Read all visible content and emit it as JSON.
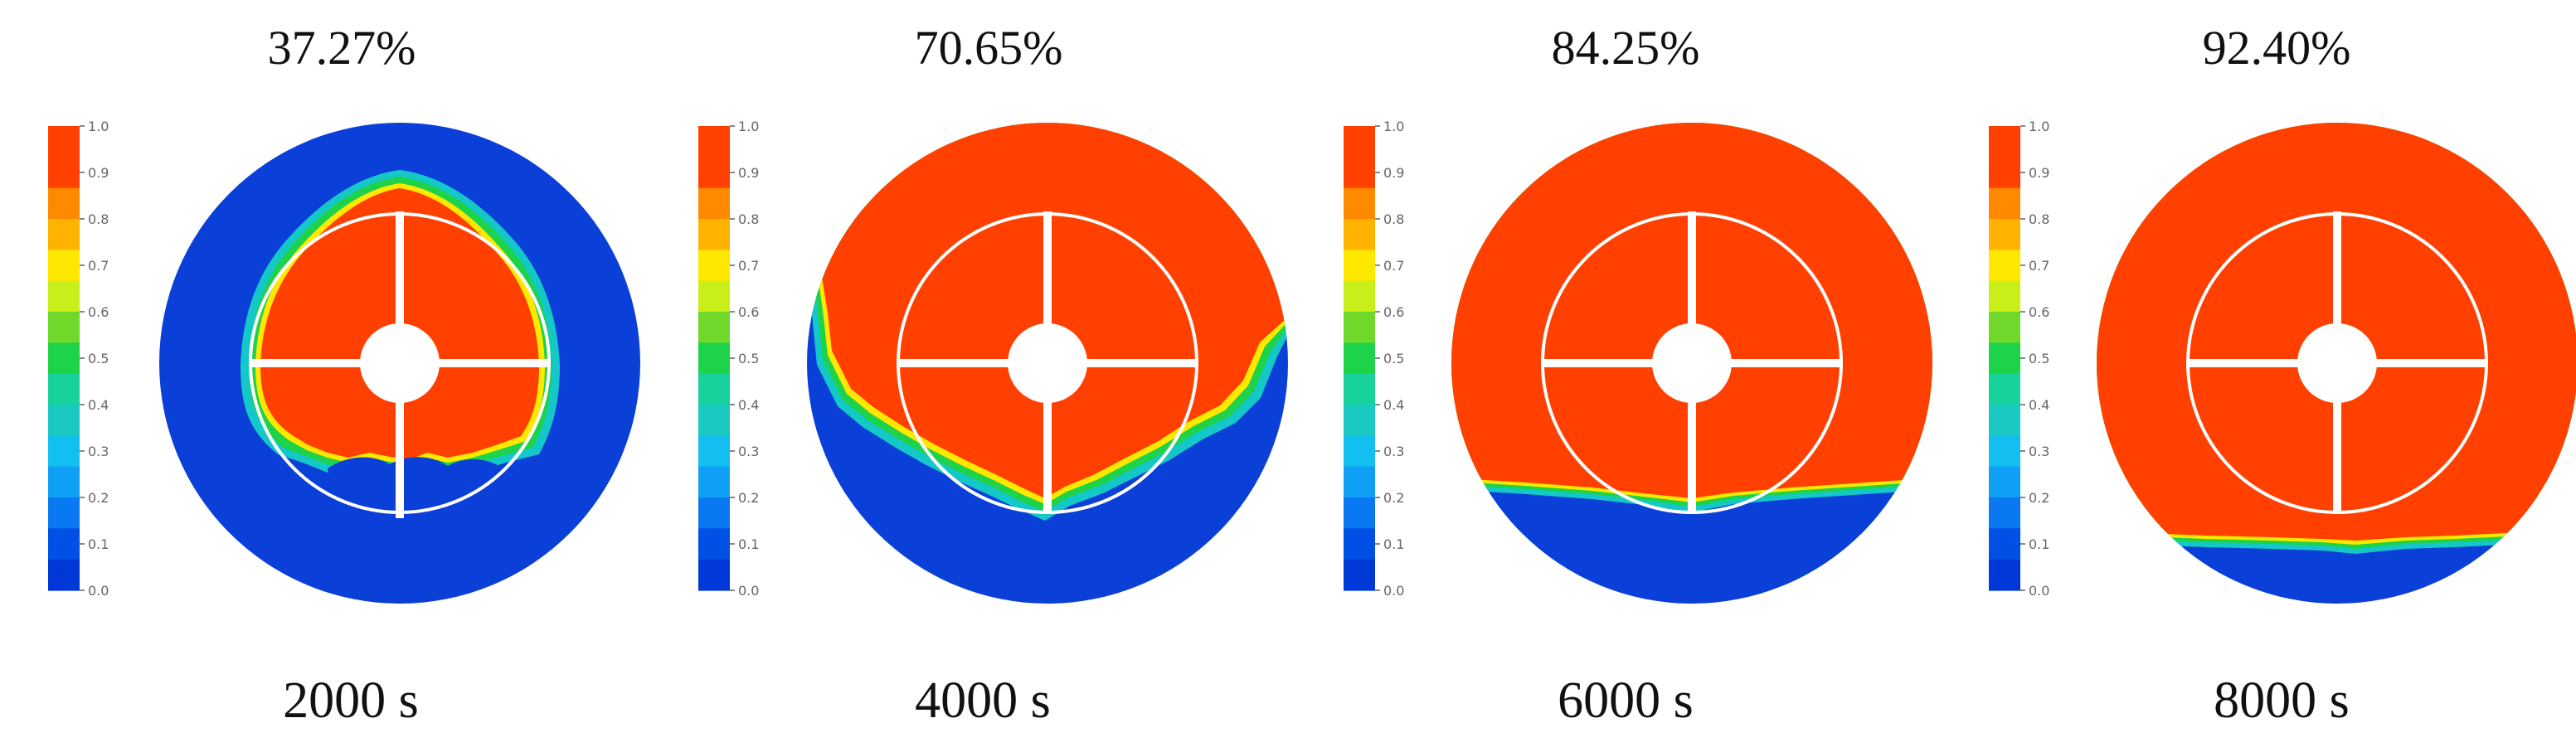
{
  "colorbar": {
    "ticks": [
      "1.0",
      "0.9",
      "0.8",
      "0.7",
      "0.6",
      "0.5",
      "0.4",
      "0.3",
      "0.2",
      "0.1",
      "0.0"
    ],
    "bands_top_to_bottom": [
      "#ff4000",
      "#ff4000",
      "#ff8a00",
      "#ffb200",
      "#ffe800",
      "#c8ef1a",
      "#6fd82a",
      "#1ed24a",
      "#17d29a",
      "#19c9c2",
      "#12bff0",
      "#0f9ff5",
      "#0a78f0",
      "#0050e6",
      "#0038d8"
    ]
  },
  "colors": {
    "water": "#ff4000",
    "air": "#0a3fd8",
    "grid": "#ffffff"
  },
  "panels": [
    {
      "fraction_label": "37.27%",
      "time_label": "2000 s",
      "liquid_fraction": 0.3727,
      "front": "inner"
    },
    {
      "fraction_label": "70.65%",
      "time_label": "4000 s",
      "liquid_fraction": 0.7065,
      "front": "bowl"
    },
    {
      "fraction_label": "84.25%",
      "time_label": "6000 s",
      "liquid_fraction": 0.8425,
      "front": "flat"
    },
    {
      "fraction_label": "92.40%",
      "time_label": "8000 s",
      "liquid_fraction": 0.924,
      "front": "flat"
    }
  ]
}
